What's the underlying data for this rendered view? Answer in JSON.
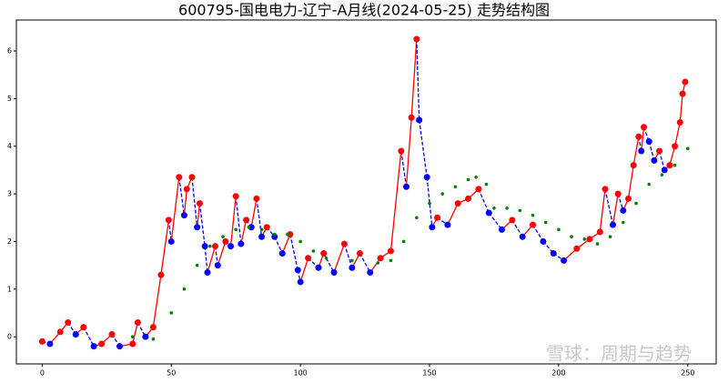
{
  "chart_data": {
    "type": "line",
    "title": "600795-国电电力-辽宁-A月线(2024-05-25) 走势结构图",
    "watermark": "雪球：周期与趋势",
    "xlim": [
      -10,
      261
    ],
    "xticks": [
      0,
      50,
      100,
      150,
      200,
      250
    ],
    "ylim": [
      -0.57,
      6.65
    ],
    "yticks": [
      0,
      1,
      2,
      3,
      4,
      5,
      6
    ],
    "up_color": "#ff0000",
    "down_color": "#0000ff",
    "series": [
      {
        "x": [
          0,
          3,
          7,
          10,
          13,
          16,
          20,
          23,
          27,
          30,
          35,
          37,
          40,
          43,
          46,
          49,
          50,
          53,
          55,
          56,
          58,
          60,
          61,
          63,
          64,
          67,
          68,
          71,
          73,
          75,
          77,
          79,
          81,
          83,
          85,
          87,
          90,
          93,
          96,
          99,
          100,
          103,
          107,
          109,
          113,
          117,
          120,
          123,
          127,
          131,
          135,
          139,
          141,
          143,
          145,
          146,
          149,
          151,
          153,
          157,
          161,
          165,
          169,
          173,
          178,
          182,
          186,
          190,
          194,
          198,
          202,
          207,
          212,
          216,
          218,
          221,
          223,
          225,
          227,
          229,
          231,
          232,
          233,
          235,
          237,
          239,
          241,
          243,
          245,
          247,
          248,
          249
        ],
        "values": [
          -0.1,
          -0.15,
          0.1,
          0.3,
          0.05,
          0.2,
          -0.2,
          -0.15,
          0.05,
          -0.2,
          -0.15,
          0.3,
          0,
          0.2,
          1.3,
          2.45,
          2.0,
          3.35,
          2.55,
          3.1,
          3.35,
          2.3,
          2.8,
          1.9,
          1.35,
          1.9,
          1.5,
          2.0,
          1.9,
          2.95,
          1.95,
          2.45,
          2.3,
          2.9,
          2.1,
          2.3,
          2.1,
          1.75,
          2.15,
          1.4,
          1.15,
          1.65,
          1.45,
          1.75,
          1.35,
          1.95,
          1.45,
          1.75,
          1.35,
          1.65,
          1.8,
          3.9,
          3.15,
          4.6,
          6.25,
          4.55,
          3.35,
          2.3,
          2.5,
          2.35,
          2.8,
          2.9,
          3.1,
          2.6,
          2.25,
          2.45,
          2.1,
          2.35,
          2.0,
          1.75,
          1.6,
          1.85,
          2.05,
          2.2,
          3.1,
          2.35,
          3.0,
          2.65,
          2.9,
          3.6,
          4.2,
          3.9,
          4.4,
          4.1,
          3.7,
          3.9,
          3.5,
          3.6,
          4.0,
          4.5,
          5.1,
          5.35
        ]
      },
      {
        "color": "#008000",
        "x": [
          35,
          43,
          50,
          55,
          60,
          65,
          70,
          75,
          80,
          85,
          90,
          95,
          100,
          105,
          110,
          120,
          130,
          135,
          140,
          145,
          150,
          155,
          160,
          165,
          168,
          172,
          175,
          180,
          185,
          190,
          195,
          200,
          205,
          210,
          215,
          220,
          225,
          230,
          235,
          240,
          245,
          250
        ],
        "values": [
          0,
          -0.05,
          0.5,
          1.0,
          1.5,
          1.9,
          2.1,
          2.25,
          2.3,
          2.25,
          2.15,
          2.15,
          2.0,
          1.8,
          1.65,
          1.6,
          1.55,
          1.6,
          2.0,
          2.5,
          2.8,
          3.0,
          3.15,
          3.3,
          3.35,
          3.2,
          2.7,
          2.7,
          2.65,
          2.55,
          2.4,
          2.25,
          2.1,
          2.05,
          1.95,
          2.1,
          2.4,
          2.8,
          3.2,
          3.4,
          3.6,
          3.95
        ]
      }
    ]
  }
}
